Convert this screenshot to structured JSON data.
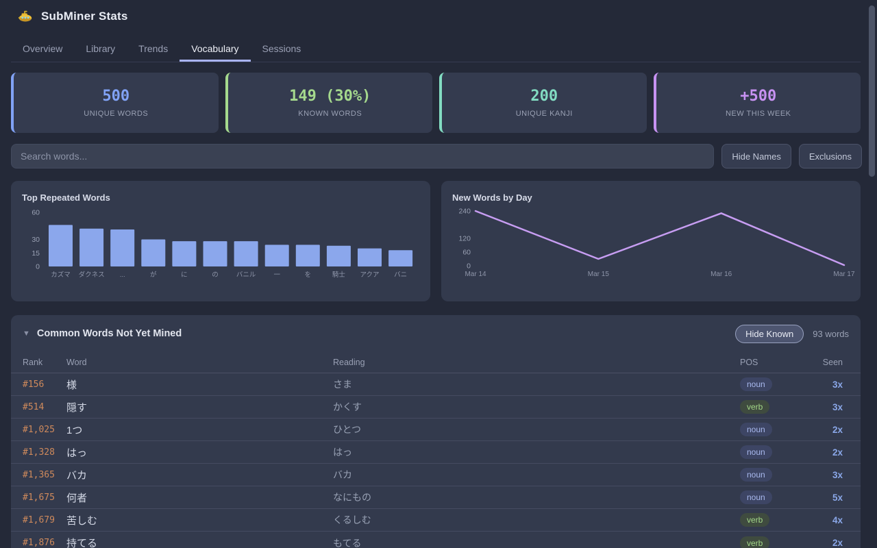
{
  "header": {
    "title": "SubMiner Stats"
  },
  "tabs": [
    {
      "label": "Overview",
      "active": false
    },
    {
      "label": "Library",
      "active": false
    },
    {
      "label": "Trends",
      "active": false
    },
    {
      "label": "Vocabulary",
      "active": true
    },
    {
      "label": "Sessions",
      "active": false
    }
  ],
  "stats": [
    {
      "value": "500",
      "label": "UNIQUE WORDS",
      "accent": "#81a2f5"
    },
    {
      "value": "149 (30%)",
      "label": "KNOWN WORDS",
      "accent": "#a5d98d"
    },
    {
      "value": "200",
      "label": "UNIQUE KANJI",
      "accent": "#82dcc2"
    },
    {
      "value": "+500",
      "label": "NEW THIS WEEK",
      "accent": "#c792f2"
    }
  ],
  "search": {
    "placeholder": "Search words...",
    "buttons": [
      {
        "label": "Hide Names"
      },
      {
        "label": "Exclusions"
      }
    ]
  },
  "chart_data": [
    {
      "type": "bar",
      "title": "Top Repeated Words",
      "categories": [
        "カズマ",
        "ダクネス",
        "...",
        "が",
        "に",
        "の",
        "バニル",
        "一",
        "を",
        "騎士",
        "アクア",
        "バニ"
      ],
      "values": [
        46,
        42,
        41,
        30,
        28,
        28,
        28,
        24,
        24,
        23,
        20,
        18
      ],
      "yticks": [
        60,
        30,
        15,
        0
      ],
      "ylim": [
        0,
        60
      ],
      "bar_color": "#8ba7ec",
      "grid": false,
      "legend": "none"
    },
    {
      "type": "line",
      "title": "New Words by Day",
      "x": [
        "Mar 14",
        "Mar 15",
        "Mar 16",
        "Mar 17"
      ],
      "values": [
        240,
        30,
        230,
        3
      ],
      "yticks": [
        240,
        120,
        60,
        0
      ],
      "ylim": [
        0,
        240
      ],
      "line_color": "#c79df2",
      "grid": false,
      "legend": "none"
    }
  ],
  "table": {
    "collapse_icon": "▼",
    "title": "Common Words Not Yet Mined",
    "hide_known_label": "Hide Known",
    "count": "93 words",
    "columns": [
      "Rank",
      "Word",
      "Reading",
      "POS",
      "Seen"
    ],
    "pos_colors": {
      "noun": {
        "bg": "#3d4564",
        "text": "#a9b9ee"
      },
      "verb": {
        "bg": "#3f4b3f",
        "text": "#a3d788"
      }
    },
    "rows": [
      {
        "rank": "#156",
        "word": "様",
        "reading": "さま",
        "pos": "noun",
        "seen": "3x"
      },
      {
        "rank": "#514",
        "word": "隠す",
        "reading": "かくす",
        "pos": "verb",
        "seen": "3x"
      },
      {
        "rank": "#1,025",
        "word": "1つ",
        "reading": "ひとつ",
        "pos": "noun",
        "seen": "2x"
      },
      {
        "rank": "#1,328",
        "word": "はっ",
        "reading": "はっ",
        "pos": "noun",
        "seen": "2x"
      },
      {
        "rank": "#1,365",
        "word": "バカ",
        "reading": "バカ",
        "pos": "noun",
        "seen": "3x"
      },
      {
        "rank": "#1,675",
        "word": "何者",
        "reading": "なにもの",
        "pos": "noun",
        "seen": "5x"
      },
      {
        "rank": "#1,679",
        "word": "苦しむ",
        "reading": "くるしむ",
        "pos": "verb",
        "seen": "4x"
      },
      {
        "rank": "#1,876",
        "word": "持てる",
        "reading": "もてる",
        "pos": "verb",
        "seen": "2x"
      }
    ]
  },
  "colors": {
    "page_bg": "#242938",
    "card_bg": "#333a4d",
    "tab_underline": "#a9b4f2",
    "rank_text": "#cf8a5c",
    "seen_text": "#8aa7e8"
  }
}
